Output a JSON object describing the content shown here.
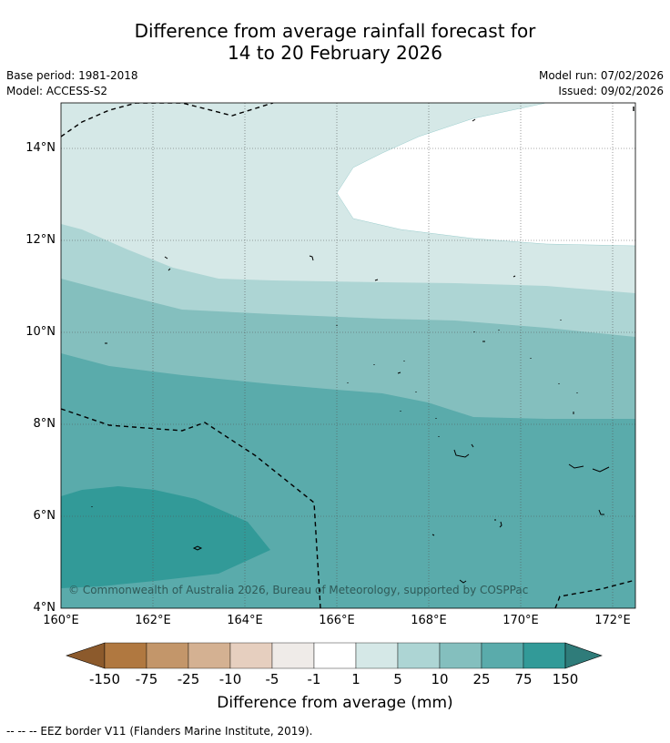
{
  "title_line1": "Difference from average rainfall forecast for",
  "title_line2": "14 to 20 February 2026",
  "base_period": "Base period: 1981-2018",
  "model": "Model: ACCESS-S2",
  "model_run": "Model run: 07/02/2026",
  "issued": "Issued: 09/02/2026",
  "lat_labels": [
    "14°N",
    "12°N",
    "10°N",
    "8°N",
    "6°N",
    "4°N"
  ],
  "lon_labels": [
    "160°E",
    "162°E",
    "164°E",
    "166°E",
    "168°E",
    "170°E",
    "172°E"
  ],
  "copyright": "© Commonwealth of Australia 2026, Bureau of Meteorology, supported by COSPPac",
  "colorbar": {
    "ticks": [
      "-150",
      "-75",
      "-25",
      "-10",
      "-5",
      "-1",
      "1",
      "5",
      "10",
      "25",
      "75",
      "150"
    ],
    "title": "Difference from average (mm)",
    "colors": [
      "#8c5a2c",
      "#b07840",
      "#c3966a",
      "#d4b192",
      "#e6cfbf",
      "#efebe8",
      "#ffffff",
      "#d5e8e7",
      "#add5d4",
      "#84bfbe",
      "#5aabab",
      "#329a98",
      "#2f7c7a"
    ]
  },
  "footnote": "--  --  -- EEZ border V11 (Flanders Marine Institute, 2019)."
}
